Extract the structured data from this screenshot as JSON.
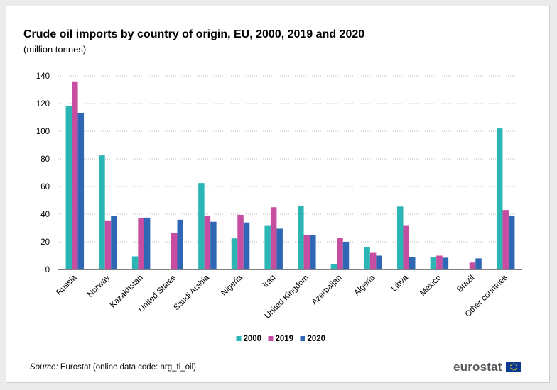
{
  "chart_data": {
    "type": "bar",
    "title": "Crude oil imports by country of origin, EU, 2000, 2019 and 2020",
    "subtitle": "(million tonnes)",
    "xlabel": "",
    "ylabel": "",
    "ylim": [
      0,
      140
    ],
    "yticks": [
      0,
      20,
      40,
      60,
      80,
      100,
      120,
      140
    ],
    "grid": true,
    "legend_position": "bottom-center",
    "categories": [
      "Russia",
      "Norway",
      "Kazakhstan",
      "United States",
      "Saudi Arabia",
      "Nigeria",
      "Iraq",
      "United Kingdom",
      "Azerbaijan",
      "Algeria",
      "Libya",
      "Mexico",
      "Brazil",
      "Other countries"
    ],
    "series": [
      {
        "name": "2000",
        "color": "#2cb5b5",
        "values": [
          118,
          82.5,
          9.5,
          0,
          62.5,
          22.5,
          31.5,
          46,
          4,
          16,
          45.5,
          9,
          0.5,
          102
        ]
      },
      {
        "name": "2019",
        "color": "#c64d9f",
        "values": [
          136,
          35.5,
          37,
          26.5,
          39,
          39.5,
          45,
          25,
          23,
          12,
          31.5,
          10,
          5,
          43
        ]
      },
      {
        "name": "2020",
        "color": "#2f67b5",
        "values": [
          113,
          38.5,
          37.5,
          36,
          34.5,
          34,
          29.5,
          25,
          20,
          10,
          9,
          8.5,
          8,
          38.5
        ]
      }
    ]
  },
  "source": {
    "label": "Source:",
    "text": "Eurostat (online data code: nrg_ti_oil)"
  },
  "brand": {
    "name": "eurostat",
    "flag_color": "#0c3a91",
    "star_color": "#ffe100"
  }
}
